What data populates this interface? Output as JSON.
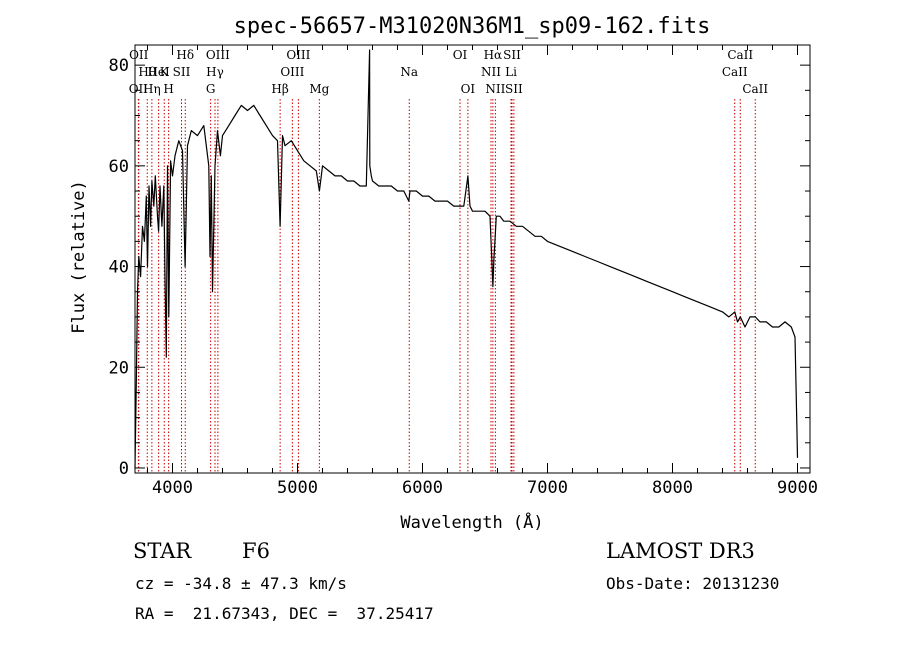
{
  "chart_data": {
    "type": "line",
    "title": "spec-56657-M31020N36M1_sp09-162.fits",
    "xlabel": "Wavelength (Å)",
    "ylabel": "Flux (relative)",
    "xlim": [
      3700,
      9100
    ],
    "ylim": [
      -1,
      84
    ],
    "xticks": [
      4000,
      5000,
      6000,
      7000,
      8000,
      9000
    ],
    "yticks": [
      0,
      20,
      40,
      60,
      80
    ],
    "line_color": "#000000",
    "marker_color": "#cc0000",
    "spectrum": {
      "name": "flux",
      "x": [
        3700,
        3710,
        3720,
        3730,
        3745,
        3760,
        3775,
        3790,
        3800,
        3812,
        3825,
        3835,
        3850,
        3862,
        3880,
        3889,
        3900,
        3915,
        3930,
        3940,
        3950,
        3960,
        3970,
        3985,
        4000,
        4020,
        4050,
        4080,
        4101,
        4120,
        4150,
        4200,
        4250,
        4290,
        4300,
        4310,
        4320,
        4340,
        4360,
        4383,
        4400,
        4450,
        4500,
        4550,
        4600,
        4650,
        4700,
        4750,
        4800,
        4840,
        4861,
        4880,
        4900,
        4950,
        5000,
        5050,
        5100,
        5150,
        5175,
        5190,
        5200,
        5250,
        5300,
        5350,
        5400,
        5450,
        5500,
        5550,
        5577,
        5578,
        5590,
        5600,
        5650,
        5700,
        5750,
        5800,
        5850,
        5890,
        5900,
        5950,
        6000,
        6050,
        6100,
        6150,
        6200,
        6250,
        6300,
        6310,
        6330,
        6363,
        6380,
        6400,
        6450,
        6500,
        6540,
        6560,
        6563,
        6570,
        6590,
        6620,
        6650,
        6700,
        6750,
        6800,
        6850,
        6900,
        6950,
        7000,
        7100,
        7200,
        7300,
        7400,
        7500,
        7600,
        7700,
        7800,
        7900,
        8000,
        8100,
        8200,
        8300,
        8400,
        8450,
        8498,
        8520,
        8542,
        8580,
        8620,
        8662,
        8700,
        8750,
        8800,
        8850,
        8900,
        8950,
        8980,
        8995,
        9000
      ],
      "y": [
        0,
        17,
        35,
        42,
        38,
        48,
        45,
        54,
        40,
        56,
        48,
        57,
        52,
        58,
        50,
        47,
        56,
        48,
        56,
        38,
        22,
        60,
        30,
        61,
        58,
        62,
        65,
        63,
        40,
        64,
        67,
        66,
        68,
        60,
        42,
        58,
        35,
        60,
        67,
        62,
        66,
        68,
        70,
        72,
        71,
        72,
        70,
        68,
        66,
        65,
        48,
        66,
        64,
        65,
        63,
        61,
        60,
        59,
        55,
        58,
        60,
        59,
        58,
        58,
        57,
        57,
        56,
        56,
        83,
        60,
        58,
        57,
        56,
        56,
        56,
        55,
        55,
        53,
        55,
        55,
        54,
        54,
        53,
        53,
        53,
        52,
        52,
        52,
        52,
        58,
        52,
        51,
        51,
        51,
        50,
        38,
        36,
        41,
        50,
        50,
        49,
        49,
        48,
        48,
        47,
        46,
        46,
        45,
        44,
        43,
        42,
        41,
        40,
        39,
        38,
        37,
        36,
        35,
        34,
        33,
        32,
        31,
        30,
        31,
        29,
        30,
        28,
        30,
        30,
        29,
        29,
        28,
        28,
        29,
        28,
        26,
        8,
        2
      ]
    },
    "line_markers": [
      {
        "label": "OII",
        "x": 3727,
        "row": 0
      },
      {
        "label": "Hθ",
        "x": 3798,
        "row": 1
      },
      {
        "label": "OII",
        "x": 3730,
        "row": 2
      },
      {
        "label": "Hη",
        "x": 3835,
        "row": 0
      },
      {
        "label": "K",
        "x": 3934,
        "row": 1
      },
      {
        "label": "HeI",
        "x": 3889,
        "row": 1
      },
      {
        "label": "H",
        "x": 3969,
        "row": 0
      },
      {
        "label": "SII",
        "x": 4072,
        "row": 1
      },
      {
        "label": "Hδ",
        "x": 4102,
        "row": 2
      },
      {
        "label": "G",
        "x": 4305,
        "row": 0
      },
      {
        "label": "Hγ",
        "x": 4340,
        "row": 1
      },
      {
        "label": "OIII",
        "x": 4363,
        "row": 2
      },
      {
        "label": "Hβ",
        "x": 4861,
        "row": 0
      },
      {
        "label": "OIII",
        "x": 4959,
        "row": 1
      },
      {
        "label": "OIII",
        "x": 5007,
        "row": 2
      },
      {
        "label": "Mg",
        "x": 5175,
        "row": 0
      },
      {
        "label": "Na",
        "x": 5894,
        "row": 1
      },
      {
        "label": "OI",
        "x": 6300,
        "row": 2
      },
      {
        "label": "OI",
        "x": 6363,
        "row": 0
      },
      {
        "label": "NII",
        "x": 6548,
        "row": 1
      },
      {
        "label": "Hα",
        "x": 6563,
        "row": 2
      },
      {
        "label": "NII",
        "x": 6583,
        "row": 0
      },
      {
        "label": "Li",
        "x": 6708,
        "row": 1
      },
      {
        "label": "SII",
        "x": 6716,
        "row": 2
      },
      {
        "label": "SII",
        "x": 6731,
        "row": 0
      },
      {
        "label": "CaII",
        "x": 8498,
        "row": 1
      },
      {
        "label": "CaII",
        "x": 8542,
        "row": 2
      },
      {
        "label": "CaII",
        "x": 8662,
        "row": 0
      }
    ]
  },
  "info": {
    "object_class": "STAR",
    "subclass": "F6",
    "survey": "LAMOST DR3",
    "redshift_line": "cz = -34.8 ± 47.3 km/s",
    "obs_date_line": "Obs-Date: 20131230",
    "coords_line": "RA =  21.67343, DEC =  37.25417"
  }
}
